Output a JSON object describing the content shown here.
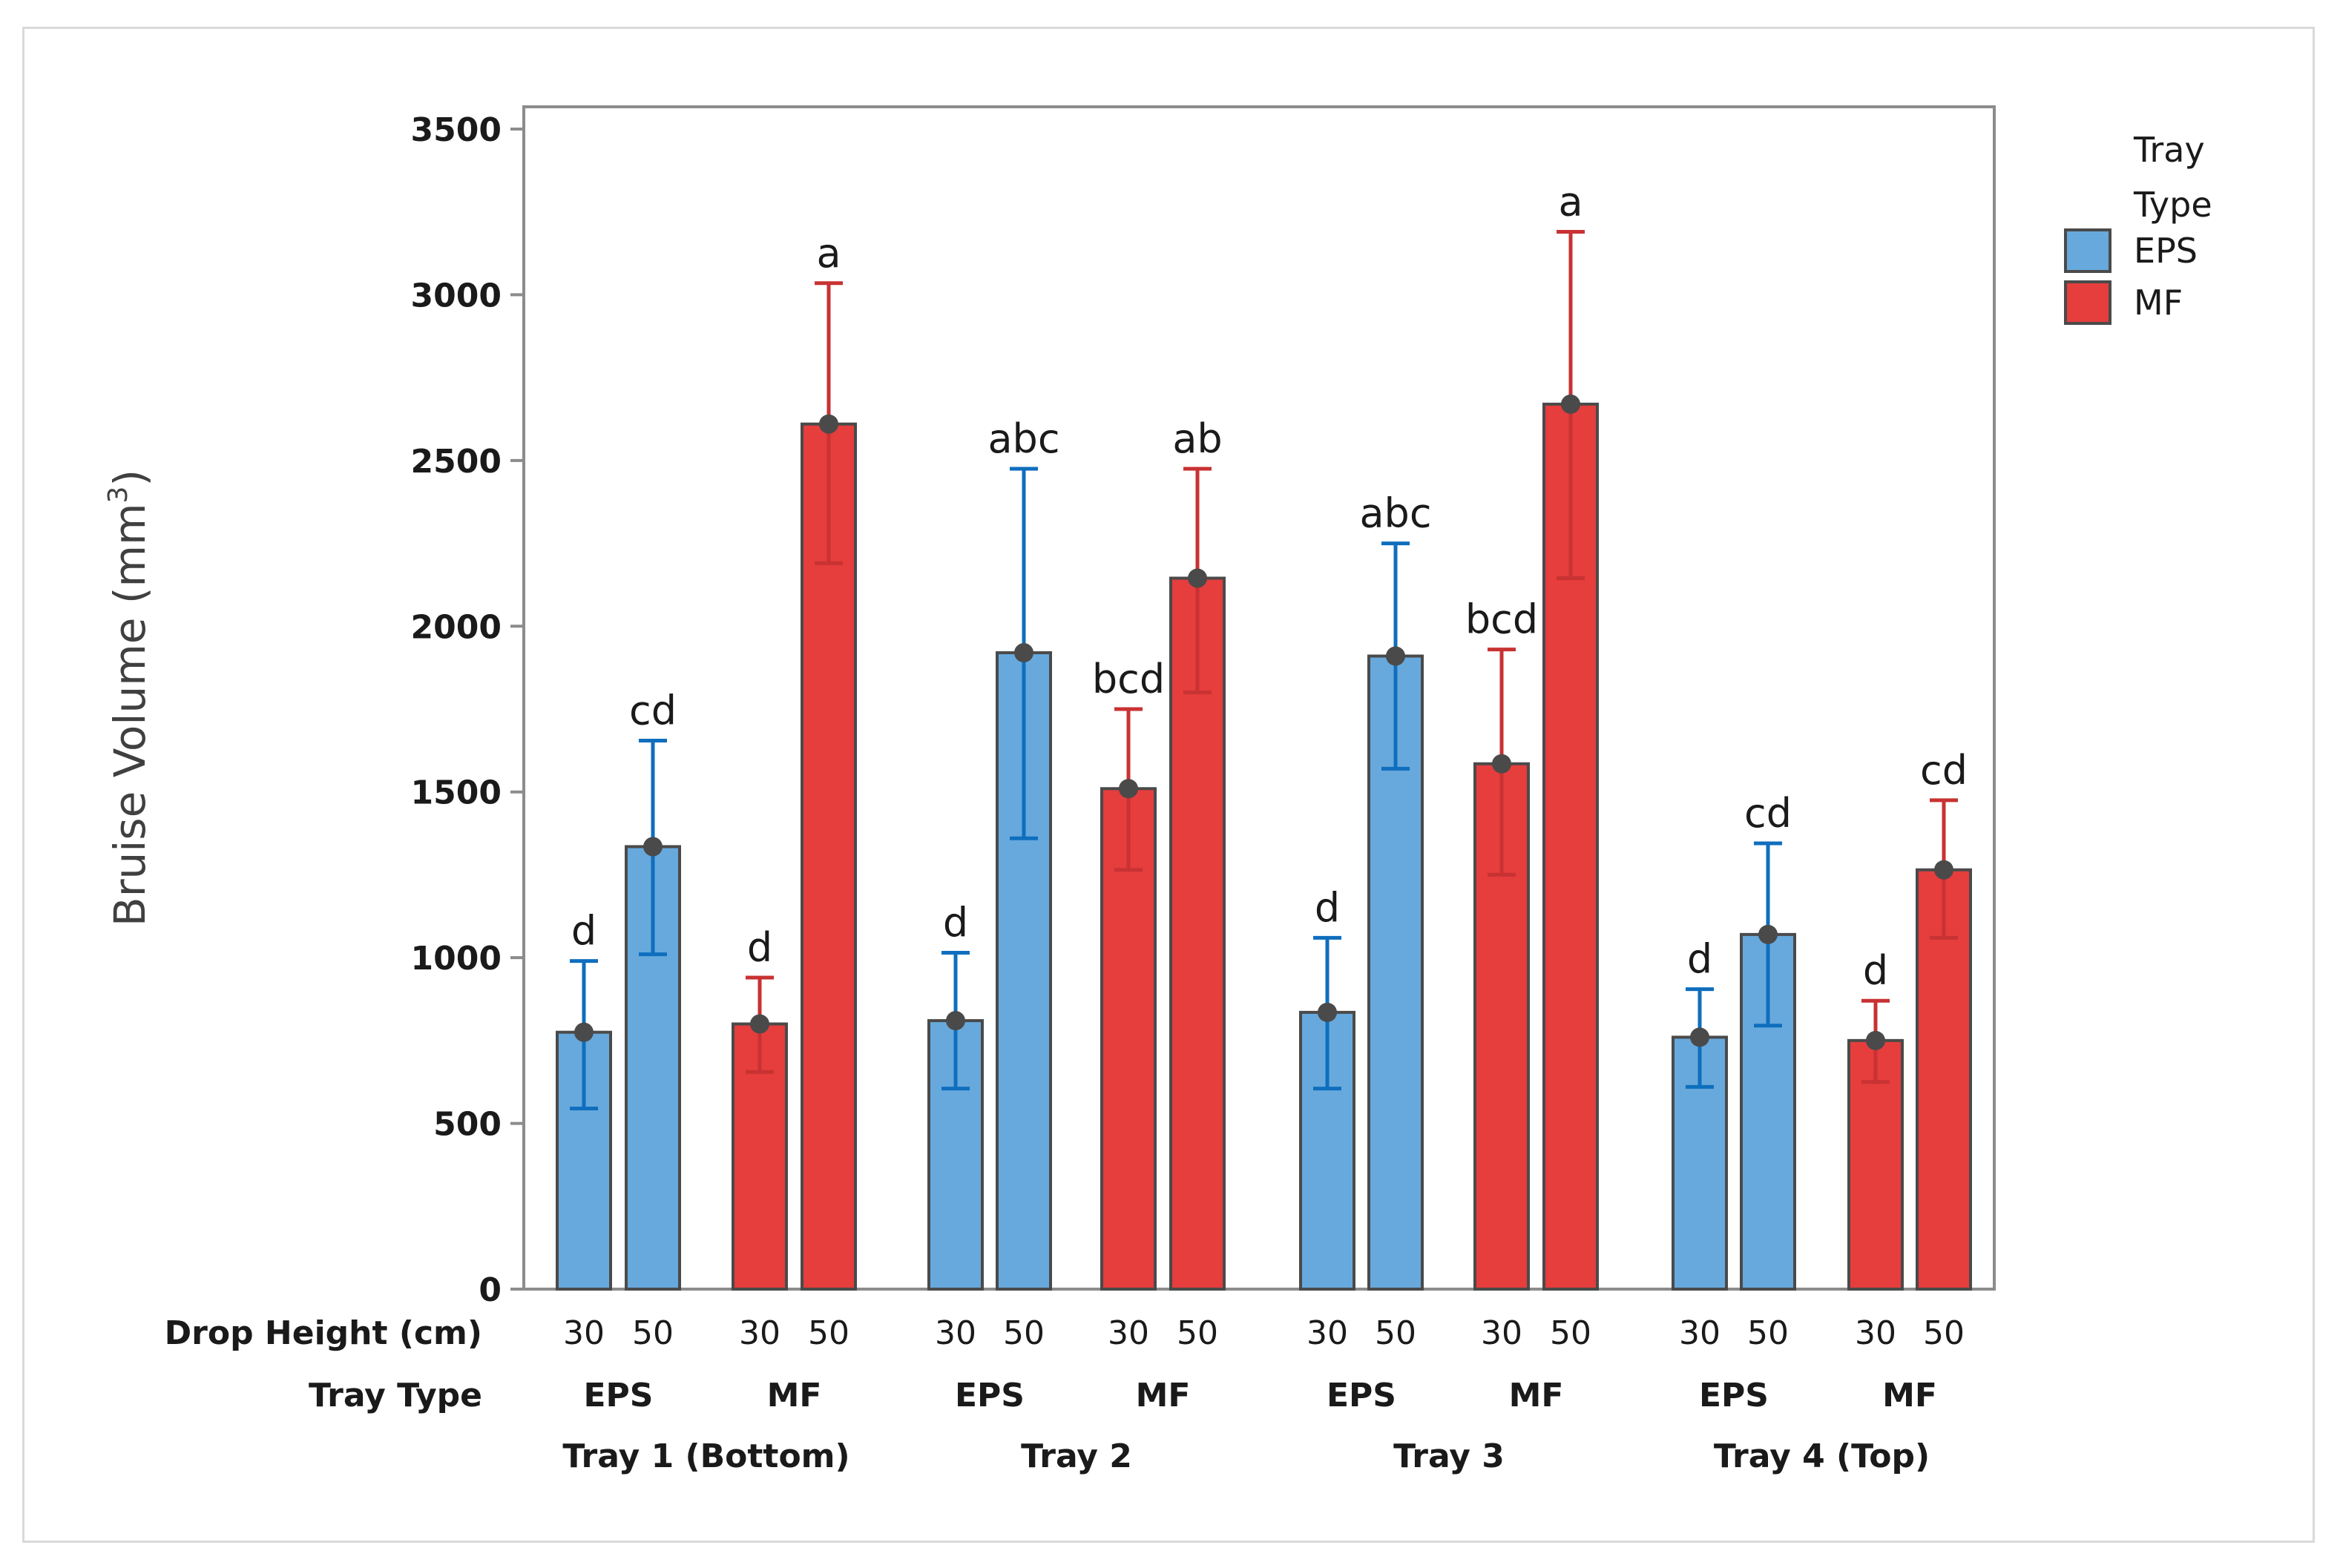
{
  "chart_data": {
    "type": "bar",
    "ylabel": "Bruise Volume (mm",
    "ylabel_sup": "3",
    "ylabel_close": ")",
    "ylim": [
      0,
      3500
    ],
    "yticks": [
      0,
      500,
      1000,
      1500,
      2000,
      2500,
      3000,
      3500
    ],
    "row_labels": {
      "drop_height": "Drop Height (cm)",
      "tray_type": "Tray Type"
    },
    "legend": {
      "title_line1": "Tray",
      "title_line2": "Type",
      "entries": [
        {
          "name": "EPS",
          "color": "#67a9dc"
        },
        {
          "name": "MF",
          "color": "#e63d3d"
        }
      ]
    },
    "colors": {
      "EPS_fill": "#67a9dc",
      "EPS_err": "#0f6ebe",
      "MF_fill": "#e63d3d",
      "MF_err": "#c83232",
      "bar_border": "#4a4a4a",
      "point": "#4a4a4a"
    },
    "groups": [
      {
        "tray": "Tray 1 (Bottom)",
        "types": [
          {
            "type": "EPS",
            "bars": [
              {
                "height": "30",
                "value": 775,
                "low": 545,
                "high": 990,
                "sig": "d"
              },
              {
                "height": "50",
                "value": 1335,
                "low": 1010,
                "high": 1655,
                "sig": "cd"
              }
            ]
          },
          {
            "type": "MF",
            "bars": [
              {
                "height": "30",
                "value": 800,
                "low": 655,
                "high": 940,
                "sig": "d"
              },
              {
                "height": "50",
                "value": 2610,
                "low": 2190,
                "high": 3035,
                "sig": "a"
              }
            ]
          }
        ]
      },
      {
        "tray": "Tray 2",
        "types": [
          {
            "type": "EPS",
            "bars": [
              {
                "height": "30",
                "value": 810,
                "low": 605,
                "high": 1015,
                "sig": "d"
              },
              {
                "height": "50",
                "value": 1920,
                "low": 1360,
                "high": 2475,
                "sig": "abc"
              }
            ]
          },
          {
            "type": "MF",
            "bars": [
              {
                "height": "30",
                "value": 1510,
                "low": 1265,
                "high": 1750,
                "sig": "bcd"
              },
              {
                "height": "50",
                "value": 2145,
                "low": 1800,
                "high": 2475,
                "sig": "ab"
              }
            ]
          }
        ]
      },
      {
        "tray": "Tray 3",
        "types": [
          {
            "type": "EPS",
            "bars": [
              {
                "height": "30",
                "value": 835,
                "low": 605,
                "high": 1060,
                "sig": "d"
              },
              {
                "height": "50",
                "value": 1910,
                "low": 1570,
                "high": 2250,
                "sig": "abc"
              }
            ]
          },
          {
            "type": "MF",
            "bars": [
              {
                "height": "30",
                "value": 1585,
                "low": 1250,
                "high": 1930,
                "sig": "bcd"
              },
              {
                "height": "50",
                "value": 2670,
                "low": 2145,
                "high": 3190,
                "sig": "a"
              }
            ]
          }
        ]
      },
      {
        "tray": "Tray 4 (Top)",
        "types": [
          {
            "type": "EPS",
            "bars": [
              {
                "height": "30",
                "value": 760,
                "low": 610,
                "high": 905,
                "sig": "d"
              },
              {
                "height": "50",
                "value": 1070,
                "low": 795,
                "high": 1345,
                "sig": "cd"
              }
            ]
          },
          {
            "type": "MF",
            "bars": [
              {
                "height": "30",
                "value": 750,
                "low": 625,
                "high": 870,
                "sig": "d"
              },
              {
                "height": "50",
                "value": 1265,
                "low": 1060,
                "high": 1475,
                "sig": "cd"
              }
            ]
          }
        ]
      }
    ]
  }
}
